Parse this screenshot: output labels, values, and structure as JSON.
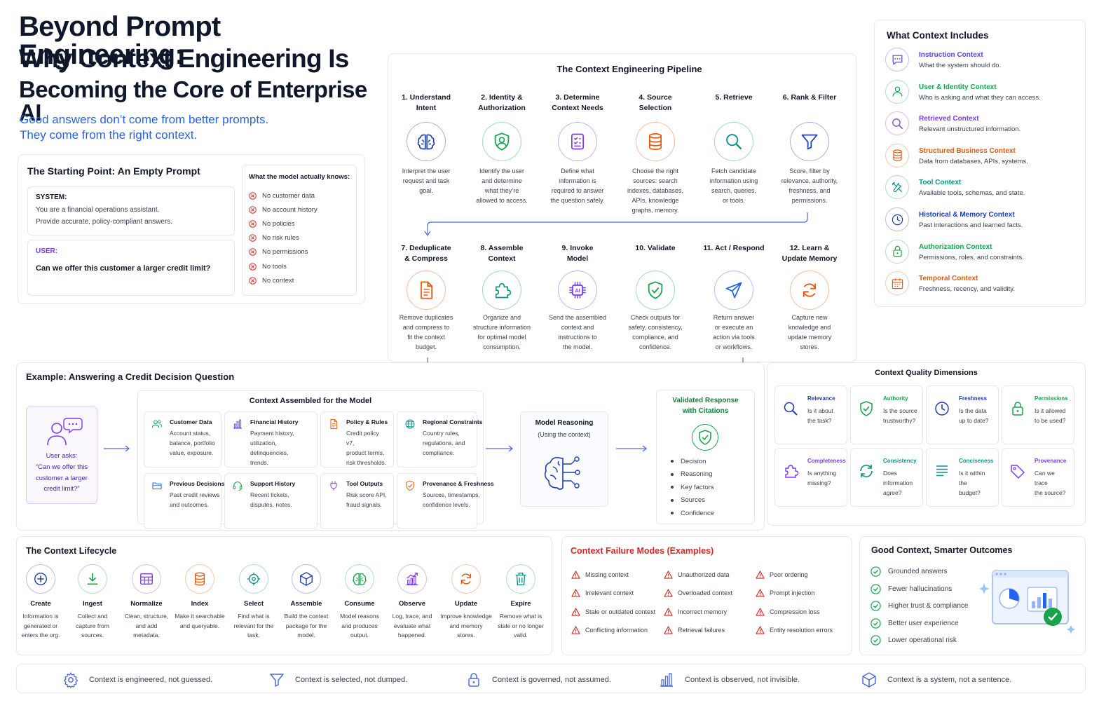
{
  "header": {
    "title_line1": "Beyond Prompt Engineering:",
    "title_line2": "Why Context Engineering Is",
    "title_line3": "Becoming the Core of Enterprise AI",
    "subtitle_line1": "Good answers don’t come from better prompts.",
    "subtitle_line2": "They come from the right context."
  },
  "starting_point": {
    "title": "The Starting Point: An Empty Prompt",
    "system_label": "SYSTEM:",
    "system_line1": "You are a financial operations assistant.",
    "system_line2": "Provide accurate, policy-compliant answers.",
    "user_label": "USER:",
    "user_text": "Can we offer this customer a larger credit limit?",
    "knows_title": "What the model actually knows:",
    "knows_items": [
      "No customer data",
      "No account history",
      "No policies",
      "No risk rules",
      "No permissions",
      "No tools",
      "No context"
    ]
  },
  "pipeline": {
    "title": "The Context Engineering Pipeline",
    "steps": [
      {
        "name1": "1. Understand",
        "name2": "Intent",
        "icon": "brain-icon",
        "desc": [
          "Interpret the user",
          "request and task",
          "goal."
        ]
      },
      {
        "name1": "2. Identity &",
        "name2": "Authorization",
        "icon": "user-shield-icon",
        "desc": [
          "Identify the user",
          "and determine",
          "what they’re",
          "allowed to access."
        ]
      },
      {
        "name1": "3. Determine",
        "name2": "Context Needs",
        "icon": "checklist-icon",
        "desc": [
          "Define what",
          "information is",
          "required to answer",
          "the question safely."
        ]
      },
      {
        "name1": "4. Source",
        "name2": "Selection",
        "icon": "database-icon",
        "desc": [
          "Choose the right",
          "sources: search",
          "indexes, databases,",
          "APIs, knowledge",
          "graphs, memory."
        ]
      },
      {
        "name1": "5. Retrieve",
        "name2": "",
        "icon": "search-icon",
        "desc": [
          "Fetch candidate",
          "information using",
          "search, queries,",
          "or tools."
        ]
      },
      {
        "name1": "6. Rank & Filter",
        "name2": "",
        "icon": "funnel-icon",
        "desc": [
          "Score, filter by",
          "relevance, authority,",
          "freshness, and",
          "permissions."
        ]
      },
      {
        "name1": "7. Deduplicate",
        "name2": "& Compress",
        "icon": "document-icon",
        "desc": [
          "Remove duplicates",
          "and compress to",
          "fit the context",
          "budget."
        ]
      },
      {
        "name1": "8. Assemble",
        "name2": "Context",
        "icon": "puzzle-icon",
        "desc": [
          "Organize and",
          "structure information",
          "for optimal model",
          "consumption."
        ]
      },
      {
        "name1": "9. Invoke",
        "name2": "Model",
        "icon": "ai-chip-icon",
        "desc": [
          "Send the assembled",
          "context and",
          "instructions to",
          "the model."
        ]
      },
      {
        "name1": "10. Validate",
        "name2": "",
        "icon": "shield-check-icon",
        "desc": [
          "Check outputs for",
          "safety, consistency,",
          "compliance, and",
          "confidence."
        ]
      },
      {
        "name1": "11. Act / Respond",
        "name2": "",
        "icon": "paper-plane-icon",
        "desc": [
          "Return answer",
          "or execute an",
          "action via tools",
          "or workflows."
        ]
      },
      {
        "name1": "12. Learn &",
        "name2": "Update Memory",
        "icon": "refresh-icon",
        "desc": [
          "Capture new",
          "knowledge and",
          "update memory",
          "stores."
        ]
      }
    ]
  },
  "includes": {
    "title": "What Context Includes",
    "items": [
      {
        "title": "Instruction Context",
        "desc": "What the system should do.",
        "icon": "chat-icon",
        "color": "#4f46e5"
      },
      {
        "title": "User & Identity Context",
        "desc": "Who is asking and what they can access.",
        "icon": "user-icon",
        "color": "#16a34a"
      },
      {
        "title": "Retrieved Context",
        "desc": "Relevant unstructured information.",
        "icon": "search-icon",
        "color": "#7c3aed"
      },
      {
        "title": "Structured Business Context",
        "desc": "Data from databases, APIs, systems.",
        "icon": "database-icon",
        "color": "#ea580c"
      },
      {
        "title": "Tool Context",
        "desc": "Available tools, schemas, and state.",
        "icon": "tools-icon",
        "color": "#0d9488"
      },
      {
        "title": "Historical & Memory Context",
        "desc": "Past interactions and learned facts.",
        "icon": "clock-icon",
        "color": "#1e40af"
      },
      {
        "title": "Authorization Context",
        "desc": "Permissions, roles, and constraints.",
        "icon": "lock-icon",
        "color": "#16a34a"
      },
      {
        "title": "Temporal Context",
        "desc": "Freshness, recency, and validity.",
        "icon": "calendar-icon",
        "color": "#ea580c"
      }
    ]
  },
  "example": {
    "title": "Example: Answering a Credit Decision Question",
    "user_asks_label": "User asks:",
    "user_asks_q1": "“Can we offer this",
    "user_asks_q2": "customer a larger",
    "user_asks_q3": "credit limit?”",
    "assembled_title": "Context Assembled for the Model",
    "cells": [
      {
        "title": "Customer Data",
        "desc": [
          "Account status,",
          "balance, portfolio",
          "value, exposure."
        ],
        "icon": "users-icon",
        "color": "#16a34a"
      },
      {
        "title": "Financial History",
        "desc": [
          "Payment history,",
          "utilization, delinquencies,",
          "trends."
        ],
        "icon": "bar-chart-icon",
        "color": "#4f46e5"
      },
      {
        "title": "Policy & Rules",
        "desc": [
          "Credit policy v7,",
          "product terms,",
          "risk thresholds."
        ],
        "icon": "document-icon",
        "color": "#ea580c"
      },
      {
        "title": "Regional Constraints",
        "desc": [
          "Country rules,",
          "regulations, and",
          "compliance."
        ],
        "icon": "globe-icon",
        "color": "#0d9488"
      },
      {
        "title": "Previous Decisions",
        "desc": [
          "Past credit reviews",
          "and outcomes."
        ],
        "icon": "folder-icon",
        "color": "#2563eb"
      },
      {
        "title": "Support History",
        "desc": [
          "Recent tickets,",
          "disputes, notes."
        ],
        "icon": "headset-icon",
        "color": "#16a34a"
      },
      {
        "title": "Tool Outputs",
        "desc": [
          "Risk score API,",
          "fraud signals."
        ],
        "icon": "plug-icon",
        "color": "#7c3aed"
      },
      {
        "title": "Provenance & Freshness",
        "desc": [
          "Sources, timestamps,",
          "confidence levels."
        ],
        "icon": "shield-check-icon",
        "color": "#ea580c"
      }
    ],
    "reasoning_title": "Model Reasoning",
    "reasoning_sub": "(Using the context)",
    "response_title1": "Validated Response",
    "response_title2": "with Citations",
    "response_items": [
      "Decision",
      "Reasoning",
      "Key factors",
      "Sources",
      "Confidence"
    ]
  },
  "quality": {
    "title": "Context Quality Dimensions",
    "cells": [
      {
        "title": "Relevance",
        "desc": [
          "Is it about",
          "the task?"
        ],
        "icon": "search-icon",
        "color": "#1e40af"
      },
      {
        "title": "Authority",
        "desc": [
          "Is the source",
          "trustworthy?"
        ],
        "icon": "shield-check-icon",
        "color": "#16a34a"
      },
      {
        "title": "Freshness",
        "desc": [
          "Is the data",
          "up to date?"
        ],
        "icon": "clock-icon",
        "color": "#1e40af"
      },
      {
        "title": "Permissions",
        "desc": [
          "Is it allowed",
          "to be used?"
        ],
        "icon": "lock-icon",
        "color": "#16a34a"
      },
      {
        "title": "Completeness",
        "desc": [
          "Is anything",
          "missing?"
        ],
        "icon": "puzzle-icon",
        "color": "#7c3aed"
      },
      {
        "title": "Consistency",
        "desc": [
          "Does information",
          "agree?"
        ],
        "icon": "sync-icon",
        "color": "#0d9488"
      },
      {
        "title": "Conciseness",
        "desc": [
          "Is it within the",
          "budget?"
        ],
        "icon": "lines-icon",
        "color": "#0d9488"
      },
      {
        "title": "Provenance",
        "desc": [
          "Can we trace",
          "the source?"
        ],
        "icon": "tag-icon",
        "color": "#7c3aed"
      }
    ]
  },
  "lifecycle": {
    "title": "The Context Lifecycle",
    "steps": [
      {
        "name": "Create",
        "desc": [
          "Information is",
          "generated or",
          "enters the org."
        ],
        "icon": "plus-icon",
        "color": "#1e40af"
      },
      {
        "name": "Ingest",
        "desc": [
          "Collect and",
          "capture from",
          "sources."
        ],
        "icon": "download-icon",
        "color": "#16a34a"
      },
      {
        "name": "Normalize",
        "desc": [
          "Clean, structure,",
          "and add",
          "metadata."
        ],
        "icon": "grid-icon",
        "color": "#7c3aed"
      },
      {
        "name": "Index",
        "desc": [
          "Make it searchable",
          "and queryable."
        ],
        "icon": "database-icon",
        "color": "#ea580c"
      },
      {
        "name": "Select",
        "desc": [
          "Find what is",
          "relevant for the",
          "task."
        ],
        "icon": "target-icon",
        "color": "#0d9488"
      },
      {
        "name": "Assemble",
        "desc": [
          "Build the context",
          "package for the",
          "model."
        ],
        "icon": "cube-icon",
        "color": "#1e40af"
      },
      {
        "name": "Consume",
        "desc": [
          "Model reasons",
          "and produces",
          "output."
        ],
        "icon": "brain-icon",
        "color": "#16a34a"
      },
      {
        "name": "Observe",
        "desc": [
          "Log, trace, and",
          "evaluate what",
          "happened."
        ],
        "icon": "trend-chart-icon",
        "color": "#7c3aed"
      },
      {
        "name": "Update",
        "desc": [
          "Improve knowledge",
          "and memory",
          "stores."
        ],
        "icon": "refresh-icon",
        "color": "#ea580c"
      },
      {
        "name": "Expire",
        "desc": [
          "Remove what is",
          "stale or no longer",
          "valid."
        ],
        "icon": "trash-icon",
        "color": "#0d9488"
      }
    ]
  },
  "failure": {
    "title": "Context Failure Modes (Examples)",
    "col1": [
      "Missing context",
      "Irrelevant context",
      "Stale or outdated context",
      "Conflicting information"
    ],
    "col2": [
      "Unauthorized data",
      "Overloaded context",
      "Incorrect memory",
      "Retrieval failures"
    ],
    "col3": [
      "Poor ordering",
      "Prompt injection",
      "Compression loss",
      "Entity resolution errors"
    ]
  },
  "outcomes": {
    "title": "Good Context, Smarter Outcomes",
    "items": [
      "Grounded answers",
      "Fewer hallucinations",
      "Higher trust & compliance",
      "Better user experience",
      "Lower operational risk"
    ]
  },
  "footer": {
    "items": [
      {
        "text": "Context is engineered, not guessed.",
        "icon": "gear-icon"
      },
      {
        "text": "Context is selected, not dumped.",
        "icon": "funnel-icon"
      },
      {
        "text": "Context is governed, not assumed.",
        "icon": "lock-icon"
      },
      {
        "text": "Context is observed, not invisible.",
        "icon": "bar-chart-icon"
      },
      {
        "text": "Context is a system, not a sentence.",
        "icon": "cube-icon"
      }
    ]
  },
  "colors": {
    "accent": "#2563eb",
    "blue": "#1e40af",
    "green": "#16a34a",
    "purple": "#7c3aed",
    "orange": "#ea580c",
    "teal": "#0d9488",
    "red": "#dc2626"
  }
}
